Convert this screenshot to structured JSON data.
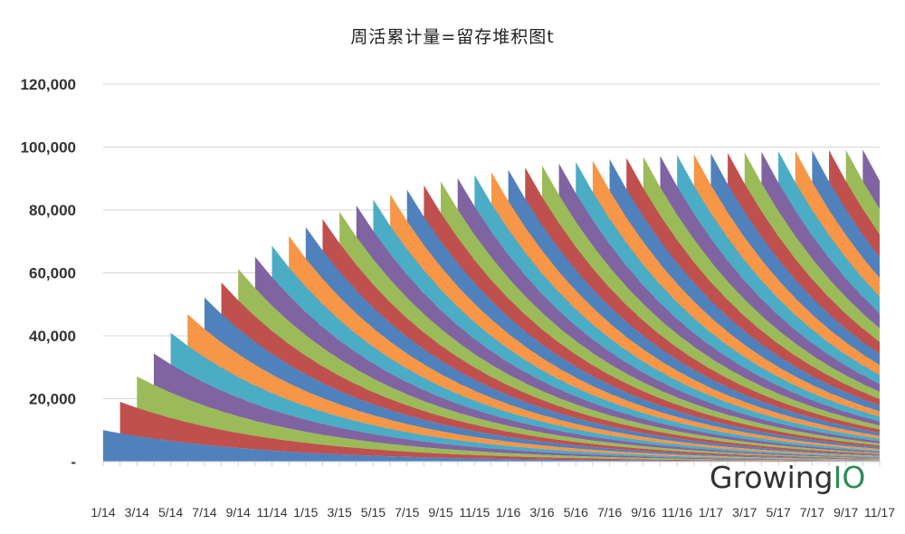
{
  "chart_data": {
    "type": "area",
    "stacked": true,
    "title": "周活累计量=留存堆积图t",
    "xlabel": "",
    "ylabel": "",
    "ylim": [
      0,
      120000
    ],
    "grid": true,
    "y_ticks": [
      {
        "value": 0,
        "label": "-"
      },
      {
        "value": 20000,
        "label": "20,000"
      },
      {
        "value": 40000,
        "label": "40,000"
      },
      {
        "value": 60000,
        "label": "60,000"
      },
      {
        "value": 80000,
        "label": "80,000"
      },
      {
        "value": 100000,
        "label": "100,000"
      },
      {
        "value": 120000,
        "label": "120,000"
      }
    ],
    "x_tick_labels": [
      "1/14",
      "3/14",
      "5/14",
      "7/14",
      "9/14",
      "11/14",
      "1/15",
      "3/15",
      "5/15",
      "7/15",
      "9/15",
      "11/15",
      "1/16",
      "3/16",
      "5/16",
      "7/16",
      "9/16",
      "11/16",
      "1/17",
      "3/17",
      "5/17",
      "7/17",
      "9/17",
      "11/17"
    ],
    "periods": 47,
    "total": [
      10000,
      19000,
      27100,
      34390,
      40951,
      46856,
      52170,
      56953,
      61258,
      65132,
      68619,
      71757,
      74581,
      77123,
      79411,
      81470,
      83323,
      84991,
      86492,
      87843,
      89059,
      90153,
      91138,
      92024,
      92822,
      93540,
      94186,
      94767,
      95291,
      95762,
      96186,
      96567,
      96910,
      97219,
      97497,
      97748,
      97973,
      98176,
      98358,
      98522,
      98670,
      98803,
      98923,
      99031,
      99128,
      99215,
      99293
    ],
    "band_colors": [
      "#4f81bd",
      "#c0504d",
      "#9bbb59",
      "#8064a2",
      "#4bacc6",
      "#f79646"
    ]
  },
  "logo": {
    "text_main": "Growing",
    "text_accent": "IO",
    "accent_color": "#2e8b57"
  }
}
